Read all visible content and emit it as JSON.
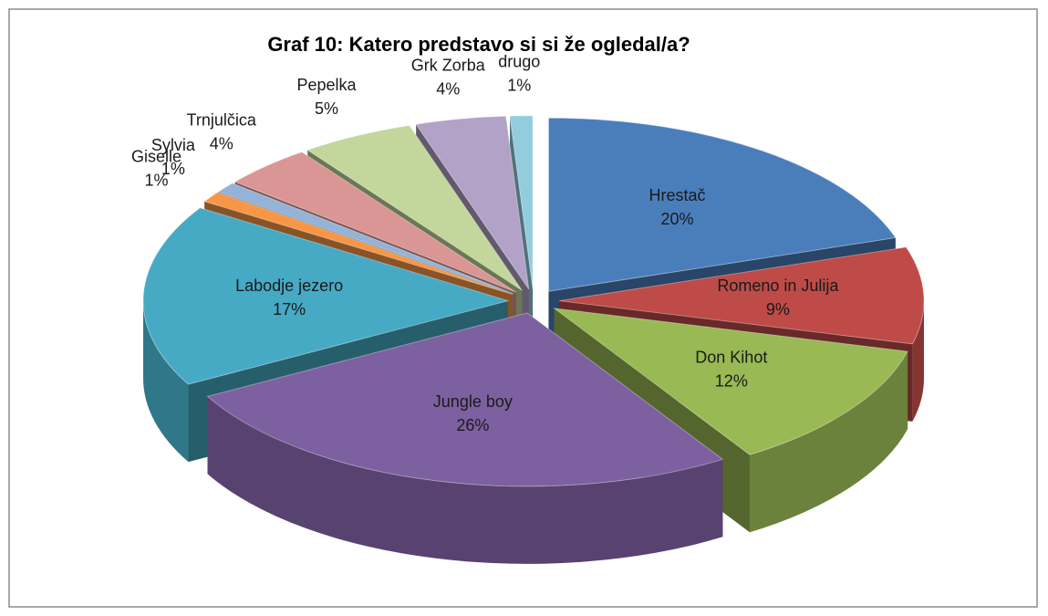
{
  "chart_data": {
    "type": "pie3d",
    "title": "Graf 10: Katero predstavo si si že ogledal/a?",
    "categories": [
      "Hrestač",
      "Romeno in Julija",
      "Don Kihot",
      "Jungle boy",
      "Labodje jezero",
      "Giselle",
      "Sylvia",
      "Trnjulčica",
      "Pepelka",
      "Grk Zorba",
      "drugo"
    ],
    "values": [
      20,
      9,
      12,
      26,
      17,
      1,
      1,
      4,
      5,
      4,
      1
    ],
    "value_labels": [
      "20%",
      "9%",
      "12%",
      "26%",
      "17%",
      "1%",
      "1%",
      "4%",
      "5%",
      "4%",
      "1%"
    ],
    "colors": [
      "#4a7ebb",
      "#be4b48",
      "#98b954",
      "#7d60a0",
      "#46aac5",
      "#f79646",
      "#95b3d7",
      "#d99694",
      "#c3d69b",
      "#b3a2c7",
      "#93cddd"
    ]
  }
}
